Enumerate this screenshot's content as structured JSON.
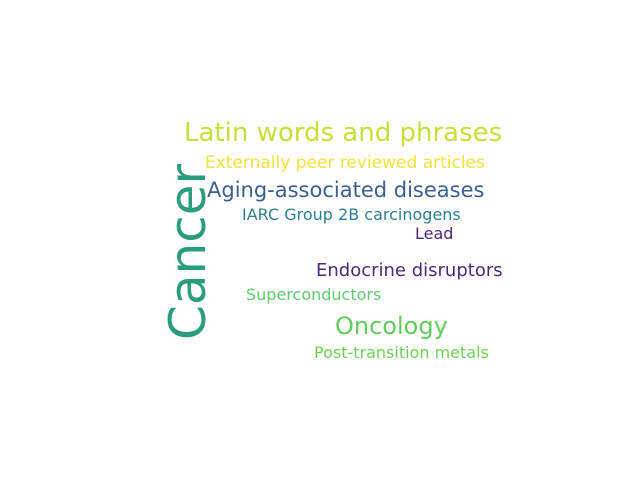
{
  "word_cloud": {
    "words": [
      {
        "id": "cancer",
        "text": "Cancer",
        "color": "#2a9d7d",
        "orientation": "vertical"
      },
      {
        "id": "latin",
        "text": "Latin words and phrases",
        "color": "#c8df39",
        "orientation": "horizontal"
      },
      {
        "id": "external",
        "text": "Externally peer reviewed articles",
        "color": "#f2e339",
        "orientation": "horizontal"
      },
      {
        "id": "aging",
        "text": "Aging-associated diseases",
        "color": "#3b5f8f",
        "orientation": "horizontal"
      },
      {
        "id": "iarc",
        "text": "IARC Group 2B carcinogens",
        "color": "#2d7f91",
        "orientation": "horizontal"
      },
      {
        "id": "lead",
        "text": "Lead",
        "color": "#4a2a75",
        "orientation": "horizontal"
      },
      {
        "id": "endocrine",
        "text": "Endocrine disruptors",
        "color": "#4e2a78",
        "orientation": "horizontal"
      },
      {
        "id": "super",
        "text": "Superconductors",
        "color": "#5fcd6f",
        "orientation": "horizontal"
      },
      {
        "id": "oncology",
        "text": "Oncology",
        "color": "#62cb5d",
        "orientation": "horizontal"
      },
      {
        "id": "post",
        "text": "Post-transition metals",
        "color": "#6fd158",
        "orientation": "horizontal"
      }
    ]
  }
}
